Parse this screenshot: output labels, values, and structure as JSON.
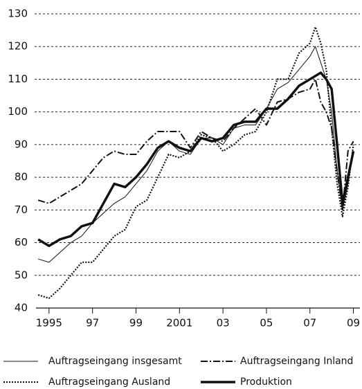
{
  "chart_data": {
    "type": "line",
    "x": [
      1995,
      1995.5,
      1996,
      1996.5,
      1997,
      1997.5,
      1998,
      1998.5,
      1999,
      1999.5,
      2000,
      2000.5,
      2001,
      2001.5,
      2002,
      2002.5,
      2003,
      2003.5,
      2004,
      2004.5,
      2005,
      2005.5,
      2006,
      2006.5,
      2007,
      2007.5,
      2007.75,
      2008,
      2008.25,
      2008.5,
      2008.75,
      2009,
      2009.25,
      2009.5
    ],
    "series": [
      {
        "name": "Auftragseingang insgesamt",
        "color": "#111111",
        "style": "thin",
        "values": [
          55,
          54,
          57,
          60,
          62,
          66,
          69,
          72,
          74,
          78,
          82,
          88,
          91,
          88,
          87,
          92,
          92,
          90,
          95,
          96,
          96,
          101,
          107,
          109,
          113,
          117,
          120,
          115,
          110,
          100,
          82,
          70,
          78,
          88
        ]
      },
      {
        "name": "Auftragseingang Inland",
        "color": "#111111",
        "style": "dash-dot",
        "values": [
          73,
          72,
          74,
          76,
          78,
          82,
          86,
          88,
          87,
          87,
          91,
          94,
          94,
          94,
          89,
          94,
          92,
          91,
          95,
          98,
          101,
          96,
          103,
          104,
          106,
          107,
          110,
          103,
          100,
          95,
          82,
          70,
          88,
          91
        ]
      },
      {
        "name": "Auftragseingang Ausland",
        "color": "#111111",
        "style": "dotted",
        "values": [
          44,
          43,
          46,
          50,
          54,
          54,
          58,
          62,
          64,
          71,
          73,
          80,
          87,
          86,
          88,
          93,
          92,
          88,
          90,
          93,
          94,
          100,
          110,
          110,
          118,
          121,
          126,
          121,
          113,
          95,
          78,
          68,
          77,
          90
        ]
      },
      {
        "name": "Produktion",
        "color": "#111111",
        "style": "thick",
        "values": [
          61,
          59,
          61,
          62,
          65,
          66,
          72,
          78,
          77,
          80,
          84,
          89,
          91,
          89,
          88,
          92,
          91,
          92,
          96,
          97,
          97,
          101,
          101,
          104,
          108,
          110,
          111,
          112,
          110,
          107,
          90,
          72,
          80,
          88
        ]
      }
    ],
    "xlim": [
      1994.9,
      2009.8
    ],
    "xticks": [
      {
        "value": 1995.5,
        "label": "1995"
      },
      {
        "value": 1997.5,
        "label": "97"
      },
      {
        "value": 1999.5,
        "label": "99"
      },
      {
        "value": 2001.5,
        "label": "2001"
      },
      {
        "value": 2003.5,
        "label": "03"
      },
      {
        "value": 2005.5,
        "label": "05"
      },
      {
        "value": 2007.5,
        "label": "07"
      },
      {
        "value": 2009.5,
        "label": "09"
      }
    ],
    "ylim": [
      40,
      130
    ],
    "yticks": [
      40,
      50,
      60,
      70,
      80,
      90,
      100,
      110,
      120,
      130
    ],
    "grid": true
  }
}
